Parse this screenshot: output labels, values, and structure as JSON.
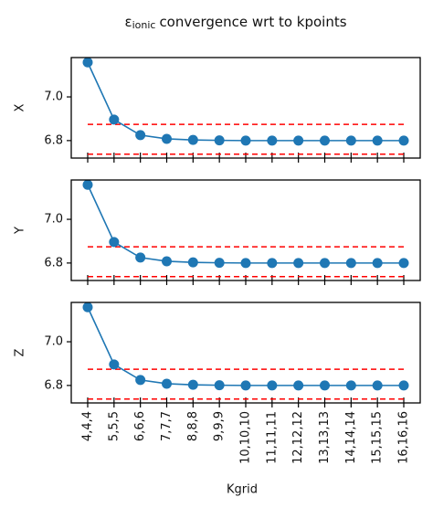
{
  "chart_data": {
    "type": "line",
    "title": {
      "symbol": "ε",
      "subscript": "ionic",
      "text": "convergence wrt to kpoints"
    },
    "xlabel": "Kgrid",
    "categories": [
      "4,4,4",
      "5,5,5",
      "6,6,6",
      "7,7,7",
      "8,8,8",
      "9,9,9",
      "10,10,10",
      "11,11,11",
      "12,12,12",
      "13,13,13",
      "14,14,14",
      "15,15,15",
      "16,16,16"
    ],
    "color": "#1f77b4",
    "hline_color": "#ff0000",
    "panels": [
      {
        "ylabel": "X",
        "values": [
          7.158,
          6.896,
          6.825,
          6.808,
          6.803,
          6.801,
          6.8,
          6.8,
          6.8,
          6.8,
          6.8,
          6.8,
          6.8
        ],
        "ylim": [
          6.72,
          7.18
        ],
        "yticks": [
          6.8,
          {
            "value": 7,
            "label": "7.0"
          }
        ],
        "hlines": [
          6.874,
          6.738
        ]
      },
      {
        "ylabel": "Y",
        "values": [
          7.158,
          6.896,
          6.825,
          6.808,
          6.803,
          6.801,
          6.8,
          6.8,
          6.8,
          6.8,
          6.8,
          6.8,
          6.8
        ],
        "ylim": [
          6.72,
          7.18
        ],
        "yticks": [
          6.8,
          {
            "value": 7,
            "label": "7.0"
          }
        ],
        "hlines": [
          6.874,
          6.738
        ]
      },
      {
        "ylabel": "Z",
        "values": [
          7.158,
          6.896,
          6.825,
          6.808,
          6.803,
          6.801,
          6.8,
          6.8,
          6.8,
          6.8,
          6.8,
          6.8,
          6.8
        ],
        "ylim": [
          6.72,
          7.18
        ],
        "yticks": [
          6.8,
          {
            "value": 7,
            "label": "7.0"
          }
        ],
        "hlines": [
          6.874,
          6.738
        ]
      }
    ]
  }
}
